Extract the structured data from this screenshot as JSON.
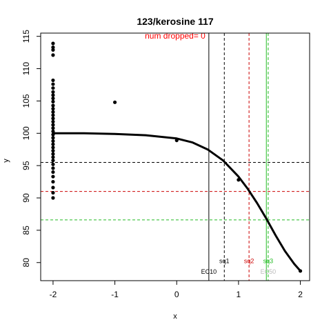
{
  "chart_data": {
    "type": "scatter",
    "title": "123/kerosine 117",
    "subtitle": "num dropped= 0",
    "xlabel": "x",
    "ylabel": "y",
    "xlim": [
      -2.2,
      2.15
    ],
    "ylim": [
      77.2,
      115.5
    ],
    "x_ticks": [
      -2,
      -1,
      0,
      1,
      2
    ],
    "y_ticks": [
      80,
      85,
      90,
      95,
      100,
      105,
      110,
      115
    ],
    "grid": false,
    "colors": {
      "fit": "#000000",
      "points": "#000000",
      "subtitle": "#ff0000",
      "sq1": "#000000",
      "sq2": "#cc0000",
      "sq3": "#22bb22",
      "ec50": "#bbbbbb"
    },
    "points": [
      {
        "x": -2,
        "y": 113.9
      },
      {
        "x": -2,
        "y": 113.3
      },
      {
        "x": -2,
        "y": 112.9
      },
      {
        "x": -2,
        "y": 112.1
      },
      {
        "x": -2,
        "y": 108.2
      },
      {
        "x": -2,
        "y": 107.6
      },
      {
        "x": -2,
        "y": 107.0
      },
      {
        "x": -2,
        "y": 106.4
      },
      {
        "x": -2,
        "y": 105.9
      },
      {
        "x": -2,
        "y": 105.4
      },
      {
        "x": -2,
        "y": 104.9
      },
      {
        "x": -2,
        "y": 104.3
      },
      {
        "x": -2,
        "y": 103.8
      },
      {
        "x": -2,
        "y": 103.3
      },
      {
        "x": -2,
        "y": 102.8
      },
      {
        "x": -2,
        "y": 102.3
      },
      {
        "x": -2,
        "y": 101.8
      },
      {
        "x": -2,
        "y": 101.3
      },
      {
        "x": -2,
        "y": 100.8
      },
      {
        "x": -2,
        "y": 100.3
      },
      {
        "x": -2,
        "y": 99.8
      },
      {
        "x": -2,
        "y": 99.3
      },
      {
        "x": -2,
        "y": 98.8
      },
      {
        "x": -2,
        "y": 98.3
      },
      {
        "x": -2,
        "y": 97.8
      },
      {
        "x": -2,
        "y": 97.3
      },
      {
        "x": -2,
        "y": 96.8
      },
      {
        "x": -2,
        "y": 96.3
      },
      {
        "x": -2,
        "y": 95.8
      },
      {
        "x": -2,
        "y": 95.2
      },
      {
        "x": -2,
        "y": 94.6
      },
      {
        "x": -2,
        "y": 94.0
      },
      {
        "x": -2,
        "y": 93.3
      },
      {
        "x": -2,
        "y": 92.5
      },
      {
        "x": -2,
        "y": 91.6
      },
      {
        "x": -2,
        "y": 90.8
      },
      {
        "x": -2,
        "y": 90.0
      },
      {
        "x": -1,
        "y": 104.8
      },
      {
        "x": 0,
        "y": 98.9
      },
      {
        "x": 1,
        "y": 92.8
      },
      {
        "x": 2,
        "y": 78.7
      }
    ],
    "fit_curve": {
      "x": [
        -2,
        -1.5,
        -1,
        -0.5,
        0,
        0.25,
        0.5,
        0.75,
        1,
        1.15,
        1.3,
        1.45,
        1.6,
        1.75,
        1.9,
        2
      ],
      "y": [
        100.0,
        100.0,
        99.9,
        99.7,
        99.2,
        98.6,
        97.5,
        95.8,
        93.3,
        91.4,
        89.2,
        86.8,
        84.2,
        81.8,
        79.8,
        78.7
      ]
    },
    "hlines": [
      {
        "y": 95.5,
        "color": "#000000",
        "style": "dashed"
      },
      {
        "y": 91.0,
        "color": "#cc0000",
        "style": "dashed"
      },
      {
        "y": 86.6,
        "color": "#22bb22",
        "style": "dashed"
      }
    ],
    "vlines": [
      {
        "x": 0.52,
        "color": "#000000",
        "style": "solid",
        "label": "EC10",
        "label_y": 78.5
      },
      {
        "x": 0.77,
        "color": "#000000",
        "style": "dashed",
        "label": "sq1",
        "label_y": 80.2
      },
      {
        "x": 1.17,
        "color": "#cc0000",
        "style": "dashed",
        "label": "sq2",
        "label_y": 80.2
      },
      {
        "x": 1.45,
        "color": "#22bb22",
        "style": "solid",
        "label": "",
        "label_y": 0
      },
      {
        "x": 1.48,
        "color": "#22bb22",
        "style": "dashed",
        "label": "sq3",
        "label_y": 80.2
      }
    ],
    "extra_labels": [
      {
        "x": 1.48,
        "y": 78.5,
        "text": "EC50",
        "color": "#bbbbbb"
      }
    ]
  }
}
